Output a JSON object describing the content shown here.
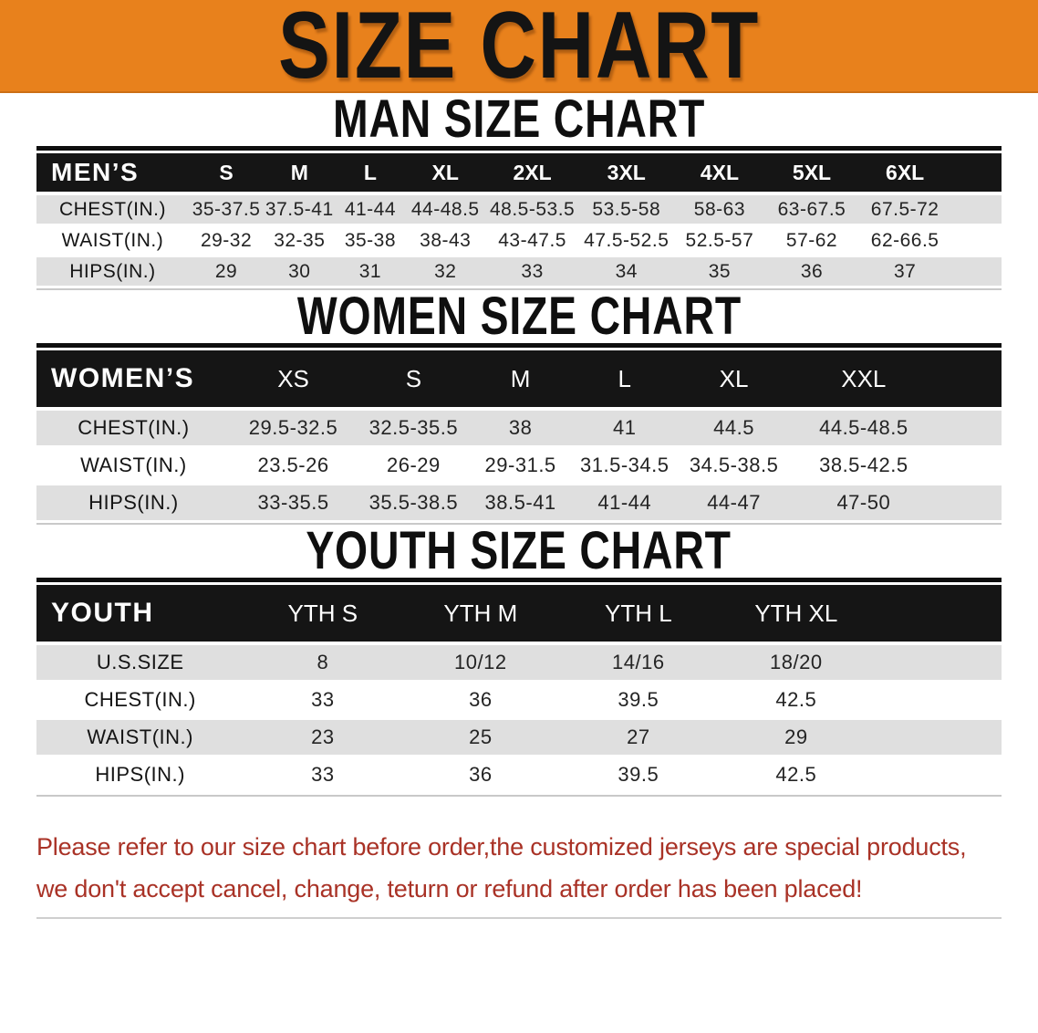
{
  "banner": {
    "title": "SIZE CHART",
    "bg_color": "#E8811C"
  },
  "sections": [
    {
      "id": "men",
      "heading": "MAN SIZE CHART",
      "table": {
        "corner_label": "MEN’S",
        "columns": [
          "S",
          "M",
          "L",
          "XL",
          "2XL",
          "3XL",
          "4XL",
          "5XL",
          "6XL"
        ],
        "rows": [
          {
            "label": "CHEST(IN.)",
            "values": [
              "35-37.5",
              "37.5-41",
              "41-44",
              "44-48.5",
              "48.5-53.5",
              "53.5-58",
              "58-63",
              "63-67.5",
              "67.5-72"
            ]
          },
          {
            "label": "WAIST(IN.)",
            "values": [
              "29-32",
              "32-35",
              "35-38",
              "38-43",
              "43-47.5",
              "47.5-52.5",
              "52.5-57",
              "57-62",
              "62-66.5"
            ]
          },
          {
            "label": "HIPS(IN.)",
            "values": [
              "29",
              "30",
              "31",
              "32",
              "33",
              "34",
              "35",
              "36",
              "37"
            ]
          }
        ]
      }
    },
    {
      "id": "women",
      "heading": "WOMEN SIZE CHART",
      "table": {
        "corner_label": "WOMEN’S",
        "columns": [
          "XS",
          "S",
          "M",
          "L",
          "XL",
          "XXL"
        ],
        "rows": [
          {
            "label": "CHEST(IN.)",
            "values": [
              "29.5-32.5",
              "32.5-35.5",
              "38",
              "41",
              "44.5",
              "44.5-48.5"
            ]
          },
          {
            "label": "WAIST(IN.)",
            "values": [
              "23.5-26",
              "26-29",
              "29-31.5",
              "31.5-34.5",
              "34.5-38.5",
              "38.5-42.5"
            ]
          },
          {
            "label": "HIPS(IN.)",
            "values": [
              "33-35.5",
              "35.5-38.5",
              "38.5-41",
              "41-44",
              "44-47",
              "47-50"
            ]
          }
        ]
      }
    },
    {
      "id": "youth",
      "heading": "YOUTH SIZE CHART",
      "table": {
        "corner_label": "YOUTH",
        "columns": [
          "YTH S",
          "YTH M",
          "YTH L",
          "YTH XL"
        ],
        "rows": [
          {
            "label": "U.S.SIZE",
            "values": [
              "8",
              "10/12",
              "14/16",
              "18/20"
            ]
          },
          {
            "label": "CHEST(IN.)",
            "values": [
              "33",
              "36",
              "39.5",
              "42.5"
            ]
          },
          {
            "label": "WAIST(IN.)",
            "values": [
              "23",
              "25",
              "27",
              "29"
            ]
          },
          {
            "label": "HIPS(IN.)",
            "values": [
              "33",
              "36",
              "39.5",
              "42.5"
            ]
          }
        ]
      }
    }
  ],
  "footnote": {
    "color": "#A93226",
    "lines": [
      "Please refer to our size chart before order,the customized jerseys are special products,",
      "we don't accept cancel, change, teturn or refund after order has been placed!"
    ]
  }
}
